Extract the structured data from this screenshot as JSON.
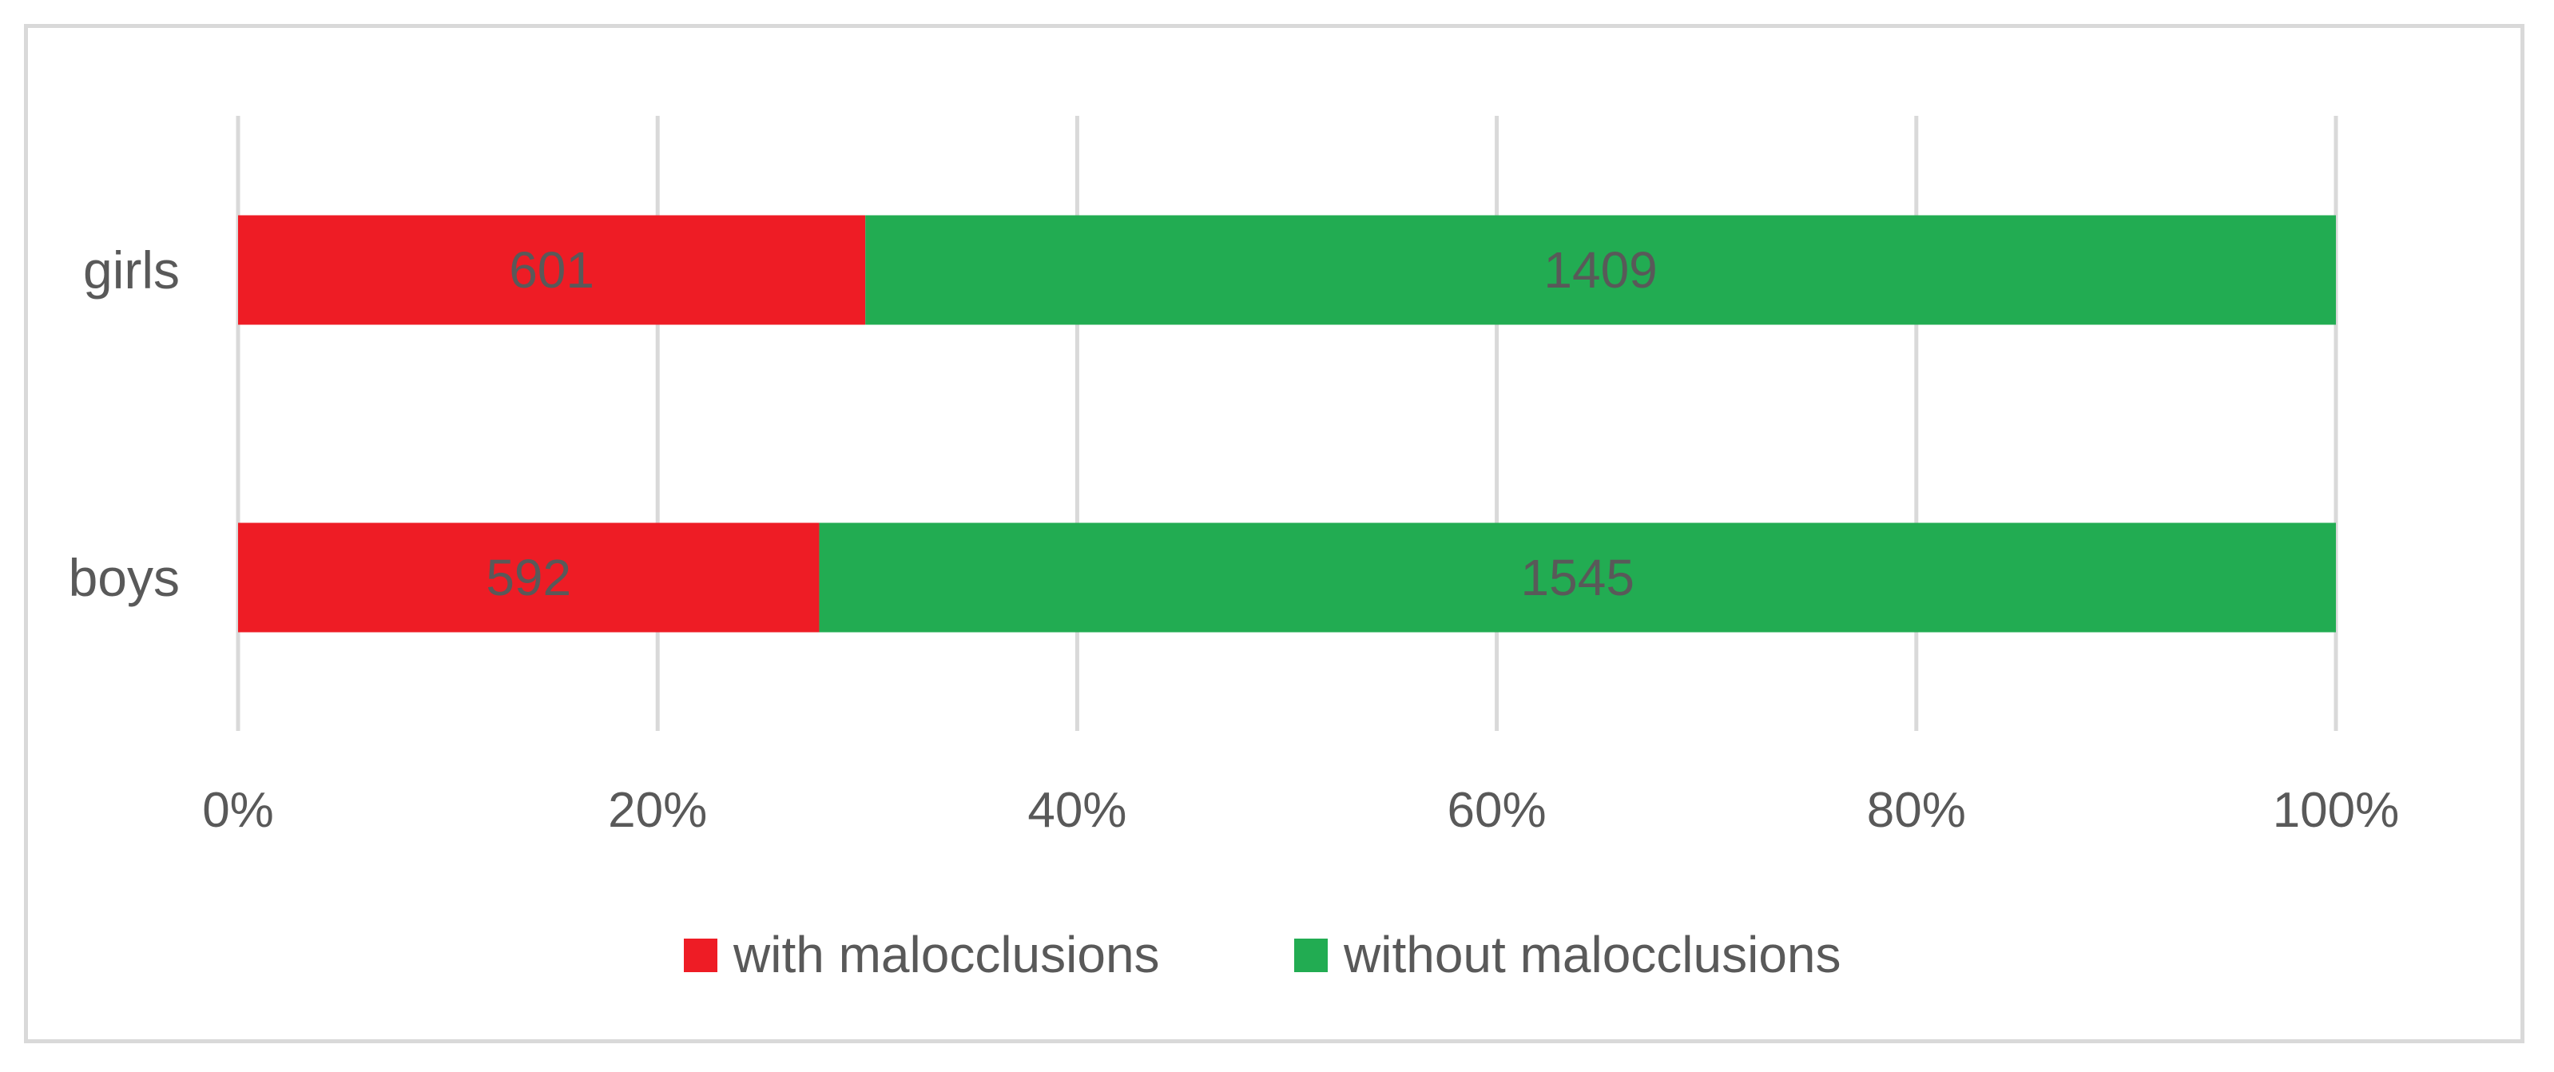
{
  "chart_data": {
    "type": "bar",
    "orientation": "horizontal",
    "stacking": "percent",
    "categories": [
      "girls",
      "boys"
    ],
    "series": [
      {
        "name": "with malocclusions",
        "values": [
          601,
          592
        ],
        "color": "#ee1c25"
      },
      {
        "name": "without malocclusions",
        "values": [
          1409,
          1545
        ],
        "color": "#22ac52"
      }
    ],
    "x_axis": {
      "ticks": [
        "0%",
        "20%",
        "40%",
        "60%",
        "80%",
        "100%"
      ],
      "range": [
        0,
        100
      ],
      "unit": "percent"
    },
    "grid": true,
    "grid_color": "#d9d9d9",
    "legend_position": "bottom",
    "title": "",
    "xlabel": "",
    "ylabel": ""
  }
}
